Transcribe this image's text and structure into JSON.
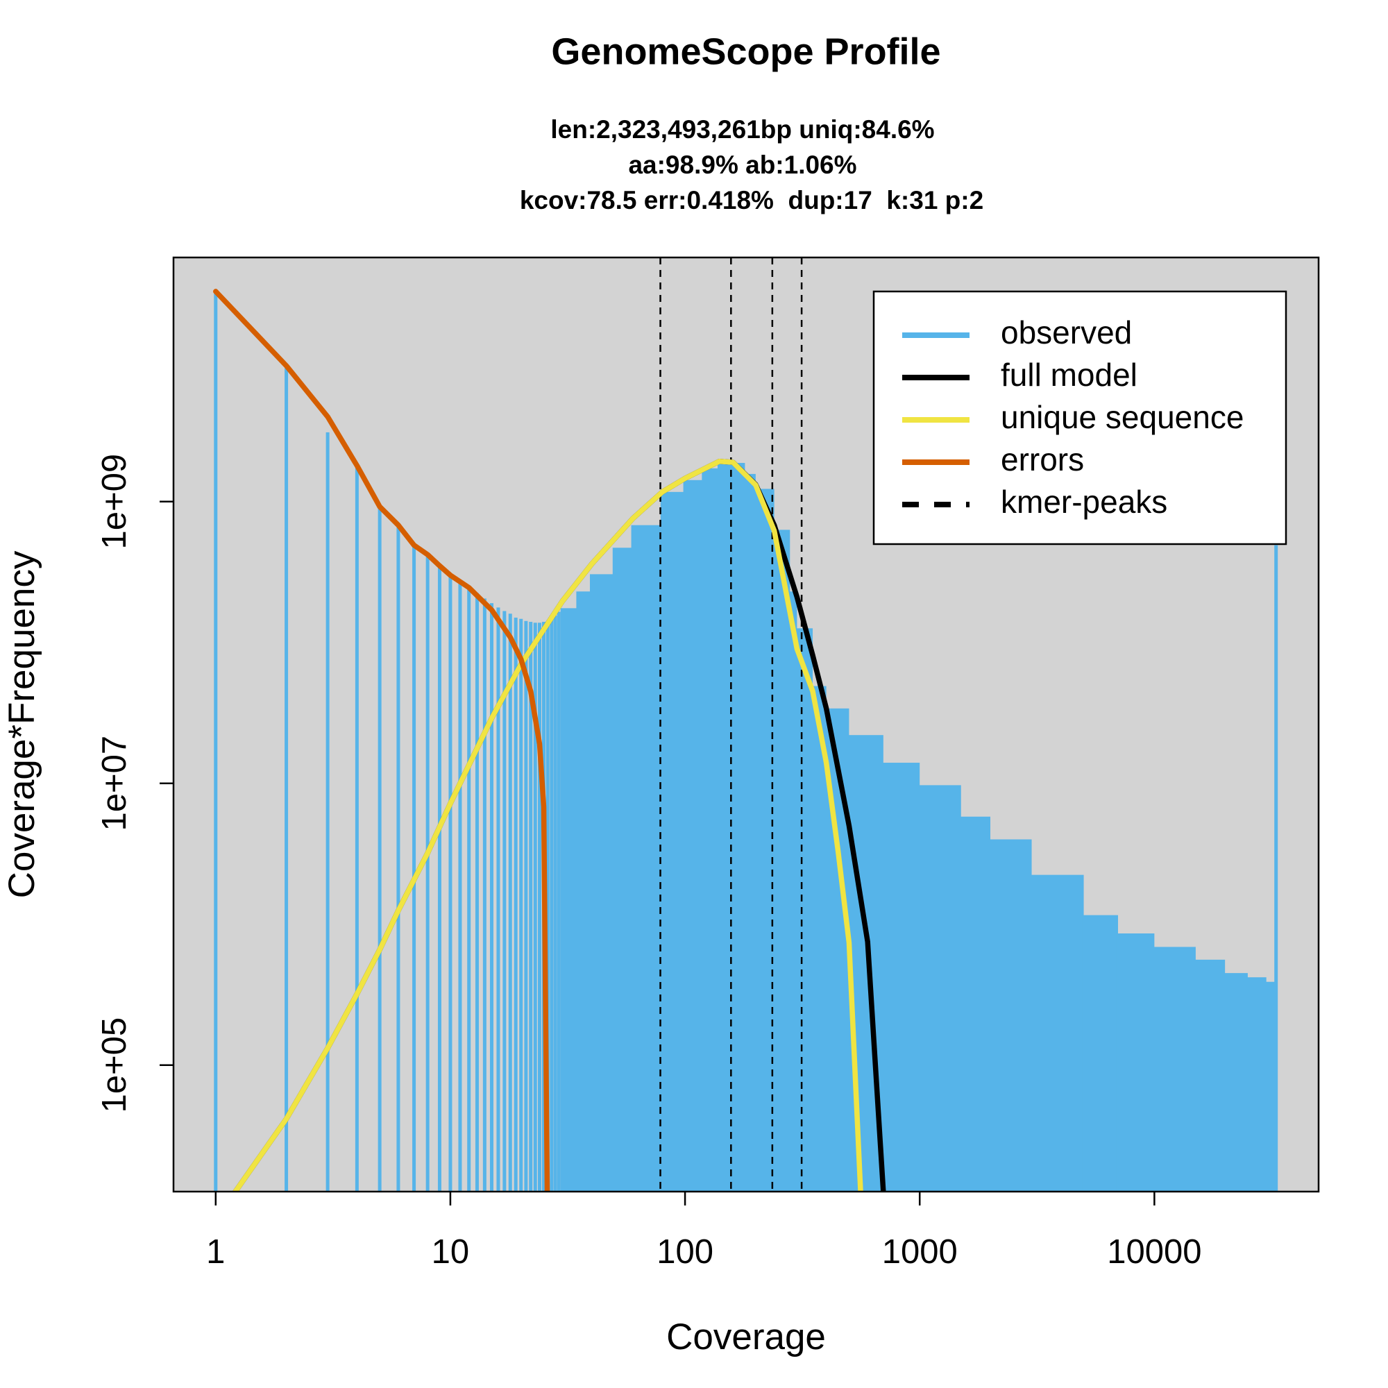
{
  "chart_data": {
    "type": "line",
    "title": "GenomeScope Profile",
    "subtitle": [
      "len:2,323,493,261bp uniq:84.6%",
      "aa:98.9% ab:1.06%",
      "kcov:78.5 err:0.418%  dup:17  k:31 p:2"
    ],
    "x_label": "Coverage",
    "y_label": "Coverage*Frequency",
    "xlog": true,
    "ylog": true,
    "xlim": [
      0.661,
      50100
    ],
    "ylim": [
      12650,
      54000000000
    ],
    "xticks": [
      1,
      10,
      100,
      1000,
      10000
    ],
    "yticks": [
      {
        "value": 100000,
        "label": "1e+05"
      },
      {
        "value": 10000000,
        "label": "1e+07"
      },
      {
        "value": 1000000000,
        "label": "1e+09"
      }
    ],
    "legend": "topright",
    "background": "#d3d3d3",
    "series": [
      {
        "name": "observed",
        "color": "#56b4e9",
        "kind": "bar",
        "x": [
          1,
          2,
          3,
          4,
          5,
          6,
          7,
          8,
          9,
          10,
          11,
          12,
          13,
          14,
          15,
          16,
          17,
          18,
          19,
          20,
          21,
          22,
          23,
          24,
          25,
          26,
          27,
          28,
          29,
          30,
          35,
          40,
          50,
          60,
          80,
          100,
          120,
          140,
          160,
          180,
          200,
          240,
          280,
          300,
          350,
          400,
          500,
          700,
          1000,
          1500,
          2000,
          3000,
          5000,
          7000,
          10000,
          15000,
          20000,
          25000,
          30000,
          33000
        ],
        "values": [
          31000000000,
          9200000000,
          3100000000,
          1800000000,
          920000000,
          680000000,
          490000000,
          420000000,
          350000000,
          300000000,
          270000000,
          245000000,
          224000000,
          205000000,
          190000000,
          177000000,
          167000000,
          160000000,
          150000000,
          147000000,
          142000000,
          140000000,
          138000000,
          138000000,
          140000000,
          142000000,
          148000000,
          155000000,
          165000000,
          175000000,
          230000000,
          305000000,
          470000000,
          680000000,
          1170000000,
          1420000000,
          1720000000,
          1880000000,
          1880000000,
          1570000000,
          1230000000,
          630000000,
          230000000,
          126000000,
          49000000,
          34000000,
          22000000,
          14000000,
          9700000,
          5800000,
          4000000,
          2240000,
          1160000,
          860000,
          690000,
          560000,
          450000,
          420000,
          390000,
          490000000
        ]
      },
      {
        "name": "full model",
        "color": "#000000",
        "kind": "line",
        "x": [
          1,
          2,
          3,
          4,
          5,
          6,
          8,
          10,
          15,
          20,
          30,
          40,
          60,
          80,
          100,
          140,
          160,
          200,
          240,
          300,
          350,
          400,
          500,
          600,
          700,
          750
        ],
        "values": [
          8000,
          41500,
          132000,
          320000,
          660000,
          1250000,
          3200000,
          7200000,
          29000000,
          70000000,
          196000000,
          360000000,
          760000000,
          1170000000,
          1460000000,
          1930000000,
          1900000000,
          1320000000,
          680000000,
          210000000,
          81000000,
          34000000,
          5000000,
          750000,
          12600,
          5000
        ]
      },
      {
        "name": "unique sequence",
        "color": "#f0e442",
        "kind": "line",
        "x": [
          1,
          2,
          3,
          4,
          5,
          6,
          8,
          10,
          15,
          20,
          30,
          40,
          60,
          80,
          100,
          140,
          160,
          200,
          240,
          300,
          350,
          400,
          450,
          500,
          560,
          600
        ],
        "values": [
          8000,
          41500,
          132000,
          320000,
          660000,
          1250000,
          3200000,
          7200000,
          29000000,
          70000000,
          196000000,
          360000000,
          760000000,
          1170000000,
          1460000000,
          1930000000,
          1900000000,
          1310000000,
          620000000,
          90000000,
          45000000,
          14000000,
          3200000,
          740000,
          12600,
          3000
        ]
      },
      {
        "name": "errors",
        "color": "#d55e00",
        "kind": "line",
        "x": [
          1,
          2,
          3,
          4,
          5,
          6,
          7,
          8,
          9,
          10,
          12,
          15,
          18,
          20,
          22,
          24,
          25,
          26
        ],
        "values": [
          31000000000,
          9200000000,
          4000000000,
          1800000000,
          920000000,
          680000000,
          490000000,
          420000000,
          350000000,
          300000000,
          245000000,
          170000000,
          109000000,
          76000000,
          45000000,
          19000000,
          6800000,
          5000
        ]
      },
      {
        "name": "kmer-peaks",
        "color": "#000000",
        "kind": "vline",
        "dash": true,
        "x": [
          78.5,
          157,
          235.5,
          314
        ]
      }
    ]
  }
}
